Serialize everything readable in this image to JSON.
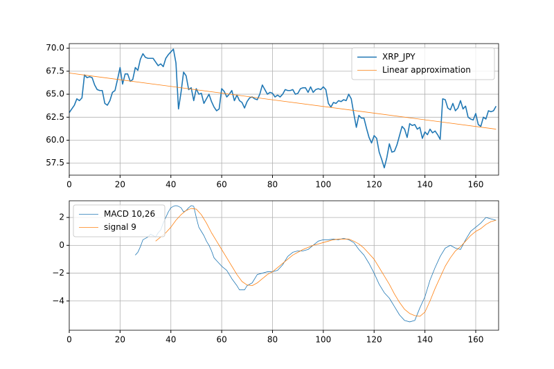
{
  "chart_data": [
    {
      "type": "line",
      "xlim": [
        0,
        169
      ],
      "ylim": [
        56.2,
        70.5
      ],
      "xticks": [
        0,
        20,
        40,
        60,
        80,
        100,
        120,
        140,
        160
      ],
      "yticks": [
        57.5,
        {
          "value": 60,
          "label": "60.0"
        },
        62.5,
        {
          "value": 65,
          "label": "65.0"
        },
        67.5,
        {
          "value": 70,
          "label": "70.0"
        }
      ],
      "grid": true,
      "legend": "upper right",
      "series": [
        {
          "name": "XRP_JPY",
          "color": "#1f77b4",
          "linewidth": 1.6,
          "x": [
            0,
            1,
            2,
            3,
            4,
            5,
            6,
            7,
            8,
            9,
            10,
            11,
            12,
            13,
            14,
            15,
            16,
            17,
            18,
            19,
            20,
            21,
            22,
            23,
            24,
            25,
            26,
            27,
            28,
            29,
            30,
            31,
            32,
            33,
            34,
            35,
            36,
            37,
            38,
            39,
            40,
            41,
            42,
            43,
            44,
            45,
            46,
            47,
            48,
            49,
            50,
            51,
            52,
            53,
            54,
            55,
            56,
            57,
            58,
            59,
            60,
            61,
            62,
            63,
            64,
            65,
            66,
            67,
            68,
            69,
            70,
            71,
            72,
            73,
            74,
            75,
            76,
            77,
            78,
            79,
            80,
            81,
            82,
            83,
            84,
            85,
            86,
            87,
            88,
            89,
            90,
            91,
            92,
            93,
            94,
            95,
            96,
            97,
            98,
            99,
            100,
            101,
            102,
            103,
            104,
            105,
            106,
            107,
            108,
            109,
            110,
            111,
            112,
            113,
            114,
            115,
            116,
            117,
            118,
            119,
            120,
            121,
            122,
            123,
            124,
            125,
            126,
            127,
            128,
            129,
            130,
            131,
            132,
            133,
            134,
            135,
            136,
            137,
            138,
            139,
            140,
            141,
            142,
            143,
            144,
            145,
            146,
            147,
            148,
            149,
            150,
            151,
            152,
            153,
            154,
            155,
            156,
            157,
            158,
            159,
            160,
            161,
            162,
            163,
            164,
            165,
            166,
            167,
            168
          ],
          "values": [
            63.0,
            63.4,
            63.8,
            64.5,
            64.3,
            64.6,
            67.1,
            66.8,
            66.9,
            66.8,
            66.0,
            65.5,
            65.4,
            65.4,
            64.0,
            63.8,
            64.3,
            65.2,
            65.4,
            66.6,
            67.9,
            66.1,
            67.2,
            67.2,
            66.4,
            66.6,
            67.9,
            67.6,
            68.8,
            69.4,
            69.0,
            68.9,
            68.9,
            68.9,
            68.5,
            68.1,
            68.3,
            68.0,
            68.9,
            69.3,
            69.6,
            69.9,
            68.4,
            63.4,
            65.2,
            67.4,
            67.0,
            65.5,
            65.7,
            64.3,
            65.6,
            65.0,
            65.1,
            64.0,
            64.5,
            65.0,
            64.2,
            63.6,
            63.2,
            63.4,
            65.6,
            65.3,
            64.7,
            65.0,
            65.4,
            64.3,
            64.9,
            64.3,
            64.1,
            63.5,
            64.2,
            64.6,
            64.7,
            64.5,
            64.4,
            65.0,
            66.0,
            65.5,
            65.0,
            65.2,
            65.1,
            64.7,
            64.9,
            64.7,
            65.0,
            65.5,
            65.4,
            65.4,
            65.5,
            65.0,
            65.1,
            65.6,
            65.7,
            65.7,
            65.2,
            65.8,
            65.2,
            65.5,
            65.6,
            65.5,
            65.8,
            65.5,
            64.0,
            63.6,
            64.1,
            64.0,
            64.3,
            64.2,
            64.4,
            64.3,
            65.0,
            64.5,
            62.9,
            61.4,
            62.7,
            62.4,
            62.4,
            61.3,
            60.3,
            59.7,
            60.5,
            60.2,
            58.7,
            57.9,
            57.0,
            58.1,
            59.6,
            58.7,
            58.8,
            59.5,
            60.5,
            61.5,
            61.2,
            60.3,
            61.8,
            61.6,
            61.7,
            61.2,
            61.4,
            60.2,
            60.9,
            60.6,
            61.2,
            60.8,
            61.0,
            60.6,
            60.1,
            64.5,
            64.4,
            63.5,
            63.3,
            64.0,
            63.2,
            63.5,
            64.3,
            63.4,
            63.7,
            62.5,
            62.3,
            62.2,
            62.9,
            61.7,
            61.5,
            62.5,
            62.3,
            63.2,
            63.1,
            63.2,
            63.7
          ]
        },
        {
          "name": "Linear approximation",
          "color": "#ff7f0e",
          "linewidth": 0.8,
          "x": [
            0,
            168
          ],
          "values": [
            67.3,
            61.2
          ]
        }
      ]
    },
    {
      "type": "line",
      "xlim": [
        0,
        169
      ],
      "ylim": [
        -6.1,
        3.2
      ],
      "xticks": [
        0,
        20,
        40,
        60,
        80,
        100,
        120,
        140,
        160
      ],
      "yticks": [
        {
          "value": -4,
          "label": "−4"
        },
        {
          "value": -2,
          "label": "−2"
        },
        0,
        2
      ],
      "grid": true,
      "legend": "upper left",
      "series": [
        {
          "name": "MACD 10,26",
          "color": "#1f77b4",
          "linewidth": 0.8,
          "x": [
            26,
            27,
            28,
            29,
            30,
            31,
            32,
            33,
            34,
            35,
            36,
            37,
            38,
            39,
            40,
            41,
            42,
            43,
            44,
            45,
            46,
            47,
            48,
            49,
            50,
            51,
            52,
            53,
            54,
            55,
            56,
            57,
            58,
            59,
            60,
            62,
            64,
            66,
            67,
            68,
            69,
            70,
            72,
            74,
            76,
            78,
            80,
            82,
            84,
            86,
            88,
            90,
            92,
            94,
            96,
            98,
            100,
            102,
            104,
            106,
            108,
            110,
            112,
            114,
            116,
            118,
            120,
            122,
            124,
            126,
            128,
            130,
            132,
            134,
            136,
            138,
            140,
            142,
            144,
            146,
            148,
            150,
            152,
            154,
            156,
            158,
            160,
            162,
            164,
            166,
            168
          ],
          "values": [
            -0.7,
            -0.5,
            -0.1,
            0.4,
            0.5,
            0.6,
            0.8,
            0.7,
            0.6,
            0.9,
            1.1,
            1.6,
            2.0,
            2.4,
            2.7,
            2.8,
            2.85,
            2.8,
            2.7,
            2.4,
            2.5,
            2.7,
            2.85,
            2.8,
            2.0,
            1.3,
            1.0,
            0.7,
            0.3,
            0.0,
            -0.4,
            -0.9,
            -1.1,
            -1.3,
            -1.5,
            -1.8,
            -2.4,
            -2.9,
            -3.2,
            -3.2,
            -3.2,
            -2.9,
            -2.7,
            -2.1,
            -2.0,
            -1.9,
            -1.9,
            -1.8,
            -1.4,
            -0.8,
            -0.5,
            -0.4,
            -0.4,
            -0.3,
            0.0,
            0.3,
            0.4,
            0.4,
            0.45,
            0.4,
            0.5,
            0.4,
            0.2,
            -0.3,
            -0.7,
            -1.3,
            -2.0,
            -2.8,
            -3.4,
            -3.8,
            -4.4,
            -5.0,
            -5.4,
            -5.5,
            -5.4,
            -4.5,
            -3.7,
            -2.5,
            -1.6,
            -0.8,
            -0.2,
            0.0,
            -0.2,
            -0.3,
            0.4,
            1.0,
            1.3,
            1.6,
            2.0,
            1.9,
            1.8
          ]
        },
        {
          "name": "signal 9",
          "color": "#ff7f0e",
          "linewidth": 0.8,
          "x": [
            34,
            36,
            38,
            40,
            42,
            44,
            46,
            48,
            50,
            52,
            54,
            56,
            58,
            60,
            62,
            64,
            66,
            68,
            70,
            72,
            74,
            76,
            78,
            80,
            82,
            84,
            86,
            88,
            90,
            92,
            94,
            96,
            98,
            100,
            102,
            104,
            106,
            108,
            110,
            112,
            114,
            116,
            118,
            120,
            122,
            124,
            126,
            128,
            130,
            132,
            134,
            136,
            138,
            140,
            142,
            144,
            146,
            148,
            150,
            152,
            154,
            156,
            158,
            160,
            162,
            164,
            166,
            168
          ],
          "values": [
            0.3,
            0.6,
            0.9,
            1.3,
            1.8,
            2.2,
            2.5,
            2.65,
            2.6,
            2.2,
            1.6,
            0.9,
            0.3,
            -0.3,
            -0.9,
            -1.5,
            -2.1,
            -2.6,
            -2.85,
            -2.9,
            -2.7,
            -2.4,
            -2.1,
            -1.9,
            -1.6,
            -1.3,
            -1.0,
            -0.7,
            -0.5,
            -0.3,
            -0.15,
            0.0,
            0.1,
            0.2,
            0.3,
            0.4,
            0.45,
            0.45,
            0.45,
            0.3,
            0.1,
            -0.2,
            -0.6,
            -1.0,
            -1.6,
            -2.2,
            -2.8,
            -3.5,
            -4.1,
            -4.6,
            -4.9,
            -5.05,
            -5.1,
            -4.8,
            -4.0,
            -3.1,
            -2.3,
            -1.5,
            -0.9,
            -0.4,
            -0.1,
            0.3,
            0.7,
            1.0,
            1.2,
            1.5,
            1.7,
            1.8
          ]
        }
      ]
    }
  ]
}
